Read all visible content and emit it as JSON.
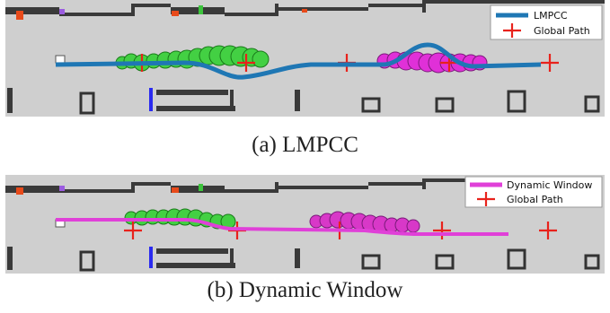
{
  "figure": {
    "panels": [
      {
        "id": "a",
        "caption": "(a) LMPCC",
        "legend": [
          {
            "label": "LMPCC",
            "color": "#1f77b4",
            "kind": "line"
          },
          {
            "label": "Global Path",
            "color": "#e8221c",
            "kind": "cross"
          }
        ],
        "path_color": "#1f77b4",
        "obstacle_colors": [
          "#2ecc40",
          "#d838c8"
        ]
      },
      {
        "id": "b",
        "caption": "(b) Dynamic Window",
        "legend": [
          {
            "label": "Dynamic Window",
            "color": "#e040d8",
            "kind": "line"
          },
          {
            "label": "Global Path",
            "color": "#e8221c",
            "kind": "cross"
          }
        ],
        "path_color": "#e040d8",
        "obstacle_colors": [
          "#2ecc40",
          "#d838c8"
        ]
      }
    ]
  }
}
